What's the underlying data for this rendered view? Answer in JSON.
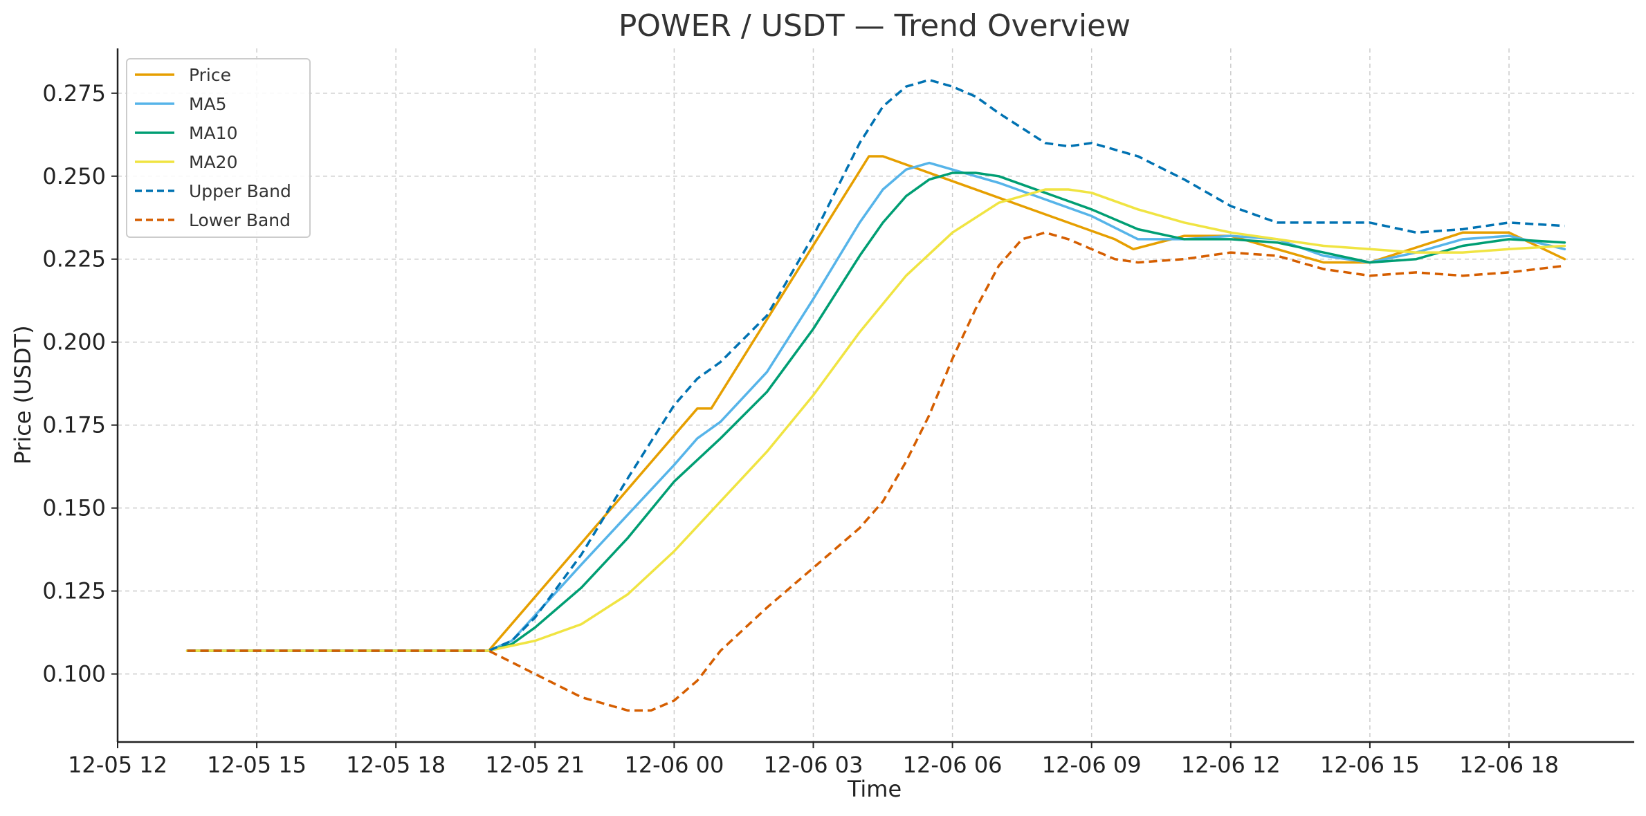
{
  "chart_data": {
    "type": "line",
    "title": "POWER / USDT — Trend Overview",
    "xlabel": "Time",
    "ylabel": "Price (USDT)",
    "x_ticks": [
      {
        "t": 12,
        "label": "12-05 12"
      },
      {
        "t": 15,
        "label": "12-05 15"
      },
      {
        "t": 18,
        "label": "12-05 18"
      },
      {
        "t": 21,
        "label": "12-05 21"
      },
      {
        "t": 24,
        "label": "12-06 00"
      },
      {
        "t": 27,
        "label": "12-06 03"
      },
      {
        "t": 30,
        "label": "12-06 06"
      },
      {
        "t": 33,
        "label": "12-06 09"
      },
      {
        "t": 36,
        "label": "12-06 12"
      },
      {
        "t": 39,
        "label": "12-06 15"
      },
      {
        "t": 42,
        "label": "12-06 18"
      }
    ],
    "y_ticks": [
      "0.100",
      "0.125",
      "0.150",
      "0.175",
      "0.200",
      "0.225",
      "0.250",
      "0.275"
    ],
    "xlim": [
      12,
      44.7
    ],
    "ylim": [
      0.0795,
      0.2885
    ],
    "grid": true,
    "legend_position": "top-left",
    "series": [
      {
        "name": "Price",
        "color": "#E69F00",
        "dash": "solid",
        "points": [
          [
            13.5,
            0.107
          ],
          [
            20.0,
            0.107
          ],
          [
            24.5,
            0.18
          ],
          [
            24.8,
            0.18
          ],
          [
            28.2,
            0.256
          ],
          [
            28.5,
            0.256
          ],
          [
            33.5,
            0.231
          ],
          [
            33.9,
            0.228
          ],
          [
            35.0,
            0.232
          ],
          [
            36.0,
            0.232
          ],
          [
            38.0,
            0.224
          ],
          [
            39.0,
            0.224
          ],
          [
            41.0,
            0.233
          ],
          [
            42.0,
            0.233
          ],
          [
            43.2,
            0.225
          ]
        ]
      },
      {
        "name": "MA5",
        "color": "#56B4E9",
        "dash": "solid",
        "points": [
          [
            13.5,
            0.107
          ],
          [
            20.0,
            0.107
          ],
          [
            20.5,
            0.11
          ],
          [
            22.0,
            0.133
          ],
          [
            24.0,
            0.163
          ],
          [
            24.5,
            0.171
          ],
          [
            25.0,
            0.176
          ],
          [
            26.0,
            0.191
          ],
          [
            27.0,
            0.213
          ],
          [
            28.0,
            0.236
          ],
          [
            28.5,
            0.246
          ],
          [
            29.0,
            0.252
          ],
          [
            29.5,
            0.254
          ],
          [
            30.0,
            0.252
          ],
          [
            31.0,
            0.248
          ],
          [
            32.0,
            0.243
          ],
          [
            33.0,
            0.238
          ],
          [
            34.0,
            0.231
          ],
          [
            35.0,
            0.231
          ],
          [
            36.0,
            0.232
          ],
          [
            37.0,
            0.231
          ],
          [
            38.0,
            0.226
          ],
          [
            39.0,
            0.224
          ],
          [
            40.0,
            0.227
          ],
          [
            41.0,
            0.231
          ],
          [
            42.0,
            0.232
          ],
          [
            43.2,
            0.228
          ]
        ]
      },
      {
        "name": "MA10",
        "color": "#009E73",
        "dash": "solid",
        "points": [
          [
            13.5,
            0.107
          ],
          [
            20.0,
            0.107
          ],
          [
            20.5,
            0.109
          ],
          [
            21.0,
            0.114
          ],
          [
            22.0,
            0.126
          ],
          [
            23.0,
            0.141
          ],
          [
            24.0,
            0.158
          ],
          [
            25.0,
            0.171
          ],
          [
            26.0,
            0.185
          ],
          [
            27.0,
            0.204
          ],
          [
            28.0,
            0.226
          ],
          [
            28.5,
            0.236
          ],
          [
            29.0,
            0.244
          ],
          [
            29.5,
            0.249
          ],
          [
            30.0,
            0.251
          ],
          [
            30.5,
            0.251
          ],
          [
            31.0,
            0.25
          ],
          [
            32.0,
            0.245
          ],
          [
            33.0,
            0.24
          ],
          [
            34.0,
            0.234
          ],
          [
            35.0,
            0.231
          ],
          [
            36.0,
            0.231
          ],
          [
            37.0,
            0.23
          ],
          [
            38.0,
            0.227
          ],
          [
            39.0,
            0.224
          ],
          [
            40.0,
            0.225
          ],
          [
            41.0,
            0.229
          ],
          [
            42.0,
            0.231
          ],
          [
            43.2,
            0.23
          ]
        ]
      },
      {
        "name": "MA20",
        "color": "#F0E442",
        "dash": "solid",
        "points": [
          [
            13.5,
            0.107
          ],
          [
            20.0,
            0.107
          ],
          [
            21.0,
            0.11
          ],
          [
            22.0,
            0.115
          ],
          [
            23.0,
            0.124
          ],
          [
            24.0,
            0.137
          ],
          [
            25.0,
            0.152
          ],
          [
            26.0,
            0.167
          ],
          [
            27.0,
            0.184
          ],
          [
            28.0,
            0.203
          ],
          [
            29.0,
            0.22
          ],
          [
            30.0,
            0.233
          ],
          [
            31.0,
            0.242
          ],
          [
            32.0,
            0.246
          ],
          [
            32.5,
            0.246
          ],
          [
            33.0,
            0.245
          ],
          [
            34.0,
            0.24
          ],
          [
            35.0,
            0.236
          ],
          [
            36.0,
            0.233
          ],
          [
            37.0,
            0.231
          ],
          [
            38.0,
            0.229
          ],
          [
            39.0,
            0.228
          ],
          [
            40.0,
            0.227
          ],
          [
            41.0,
            0.227
          ],
          [
            42.0,
            0.228
          ],
          [
            43.2,
            0.229
          ]
        ]
      },
      {
        "name": "Upper Band",
        "color": "#0072B2",
        "dash": "dashed",
        "points": [
          [
            13.5,
            0.107
          ],
          [
            20.0,
            0.107
          ],
          [
            20.5,
            0.11
          ],
          [
            21.0,
            0.117
          ],
          [
            22.0,
            0.136
          ],
          [
            23.0,
            0.159
          ],
          [
            24.0,
            0.181
          ],
          [
            24.5,
            0.189
          ],
          [
            25.0,
            0.194
          ],
          [
            26.0,
            0.208
          ],
          [
            27.0,
            0.232
          ],
          [
            28.0,
            0.26
          ],
          [
            28.5,
            0.271
          ],
          [
            29.0,
            0.277
          ],
          [
            29.5,
            0.279
          ],
          [
            30.0,
            0.277
          ],
          [
            30.5,
            0.274
          ],
          [
            31.0,
            0.269
          ],
          [
            32.0,
            0.26
          ],
          [
            32.5,
            0.259
          ],
          [
            33.0,
            0.26
          ],
          [
            34.0,
            0.256
          ],
          [
            35.0,
            0.249
          ],
          [
            36.0,
            0.241
          ],
          [
            37.0,
            0.236
          ],
          [
            38.0,
            0.236
          ],
          [
            39.0,
            0.236
          ],
          [
            40.0,
            0.233
          ],
          [
            41.0,
            0.234
          ],
          [
            42.0,
            0.236
          ],
          [
            43.2,
            0.235
          ]
        ]
      },
      {
        "name": "Lower Band",
        "color": "#D55E00",
        "dash": "dashed",
        "points": [
          [
            13.5,
            0.107
          ],
          [
            20.0,
            0.107
          ],
          [
            21.0,
            0.1
          ],
          [
            22.0,
            0.093
          ],
          [
            23.0,
            0.089
          ],
          [
            23.5,
            0.089
          ],
          [
            24.0,
            0.092
          ],
          [
            24.5,
            0.098
          ],
          [
            25.0,
            0.107
          ],
          [
            26.0,
            0.12
          ],
          [
            27.0,
            0.132
          ],
          [
            28.0,
            0.144
          ],
          [
            28.5,
            0.152
          ],
          [
            29.0,
            0.164
          ],
          [
            29.5,
            0.178
          ],
          [
            30.0,
            0.195
          ],
          [
            30.5,
            0.21
          ],
          [
            31.0,
            0.223
          ],
          [
            31.5,
            0.231
          ],
          [
            32.0,
            0.233
          ],
          [
            32.5,
            0.231
          ],
          [
            33.0,
            0.228
          ],
          [
            33.5,
            0.225
          ],
          [
            34.0,
            0.224
          ],
          [
            35.0,
            0.225
          ],
          [
            36.0,
            0.227
          ],
          [
            37.0,
            0.226
          ],
          [
            38.0,
            0.222
          ],
          [
            39.0,
            0.22
          ],
          [
            40.0,
            0.221
          ],
          [
            41.0,
            0.22
          ],
          [
            42.0,
            0.221
          ],
          [
            43.2,
            0.223
          ]
        ]
      }
    ]
  }
}
